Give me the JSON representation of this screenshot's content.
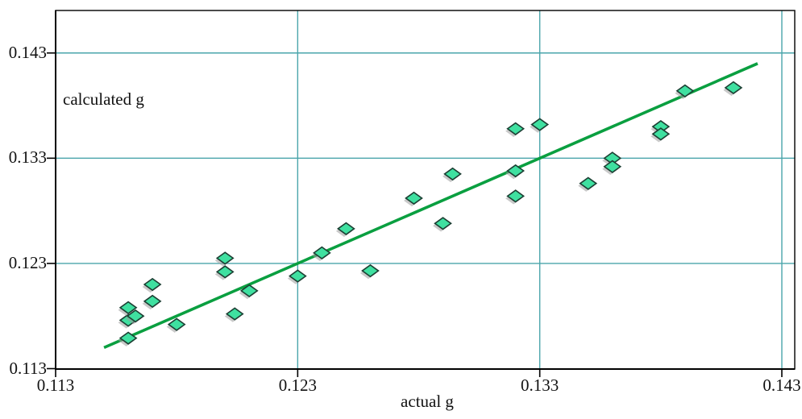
{
  "chart_data": {
    "type": "scatter",
    "xlabel": "actual g",
    "ylabel": "calculated g",
    "x_tick_values": [
      0.113,
      0.123,
      0.133,
      0.143
    ],
    "x_tick_labels": [
      "0.113",
      "0.123",
      "0.133",
      "0.143"
    ],
    "y_tick_values": [
      0.113,
      0.123,
      0.133,
      0.143
    ],
    "y_tick_labels": [
      "0.113",
      "0.123",
      "0.133",
      "0.143"
    ],
    "xlim": [
      0.113,
      0.1435
    ],
    "ylim": [
      0.113,
      0.147
    ],
    "grid": true,
    "points": [
      [
        0.116,
        0.1159
      ],
      [
        0.116,
        0.1176
      ],
      [
        0.1163,
        0.118
      ],
      [
        0.116,
        0.1188
      ],
      [
        0.117,
        0.1194
      ],
      [
        0.117,
        0.121
      ],
      [
        0.118,
        0.1172
      ],
      [
        0.12,
        0.1235
      ],
      [
        0.12,
        0.1222
      ],
      [
        0.1204,
        0.1182
      ],
      [
        0.121,
        0.1204
      ],
      [
        0.123,
        0.1218
      ],
      [
        0.124,
        0.124
      ],
      [
        0.125,
        0.1263
      ],
      [
        0.126,
        0.1223
      ],
      [
        0.1278,
        0.1292
      ],
      [
        0.129,
        0.1268
      ],
      [
        0.1294,
        0.1315
      ],
      [
        0.132,
        0.1358
      ],
      [
        0.133,
        0.1362
      ],
      [
        0.132,
        0.1318
      ],
      [
        0.132,
        0.1294
      ],
      [
        0.135,
        0.1306
      ],
      [
        0.136,
        0.133
      ],
      [
        0.136,
        0.1322
      ],
      [
        0.138,
        0.136
      ],
      [
        0.138,
        0.1353
      ],
      [
        0.139,
        0.1394
      ],
      [
        0.141,
        0.1397
      ]
    ],
    "trend_line": {
      "from": [
        0.115,
        0.115
      ],
      "to": [
        0.142,
        0.142
      ]
    },
    "colors": {
      "grid": "#4aa5ab",
      "frame": "#000000",
      "trend_line": "#0a9f40",
      "marker_fill": "#3fe0a0",
      "marker_stroke": "#1c3f33",
      "marker_shadow": "#9c9c9c",
      "text": "#111111"
    }
  }
}
